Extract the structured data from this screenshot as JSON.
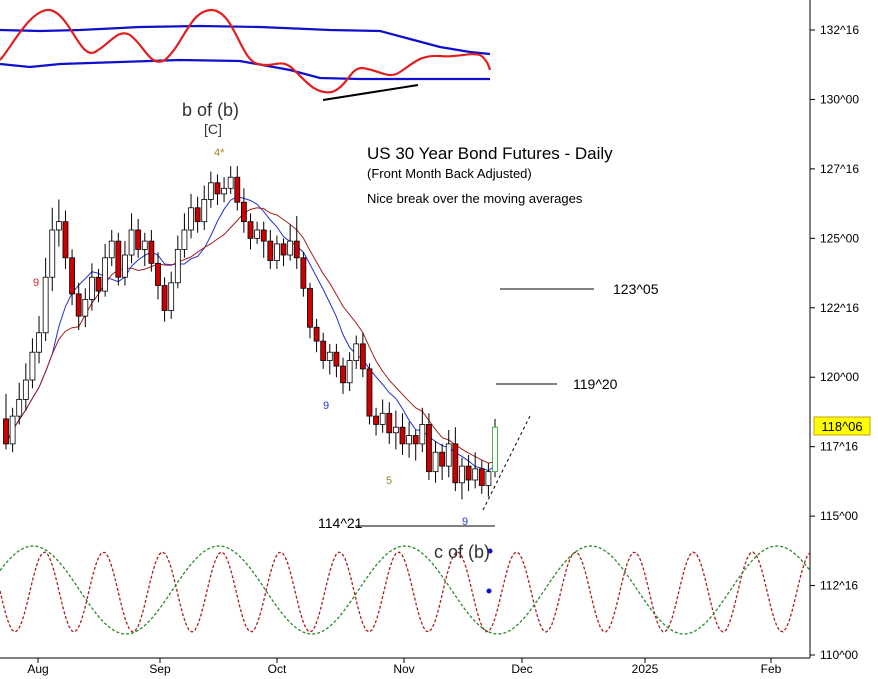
{
  "chart_data": {
    "type": "candlestick",
    "title": "US 30 Year Bond Futures - Daily",
    "subtitle": "(Front Month Back Adjusted)",
    "note": "Nice break over the moving averages",
    "y_axis": {
      "min": 110,
      "max": 132.5,
      "position": "right",
      "tick_labels": [
        "132^16",
        "130^00",
        "127^16",
        "125^00",
        "122^16",
        "120^00",
        "117^16",
        "115^00",
        "112^16",
        "110^00"
      ],
      "tick_values": [
        132.5,
        130,
        127.5,
        125,
        122.5,
        120,
        117.5,
        115,
        112.5,
        110
      ]
    },
    "x_axis": {
      "tick_labels": [
        "Aug",
        "Sep",
        "Oct",
        "Nov",
        "Dec",
        "2025",
        "Feb"
      ]
    },
    "last_price": {
      "label": "118^06",
      "value": 118.19,
      "color": "#ffff00"
    },
    "levels": [
      {
        "label": "123^05",
        "value": 123.16
      },
      {
        "label": "119^20",
        "value": 119.63
      },
      {
        "label": "114^21",
        "value": 114.66
      }
    ],
    "annotations": [
      {
        "text": "b of (b)",
        "color": "#333333"
      },
      {
        "text": "[C]",
        "color": "#333333"
      },
      {
        "text": "4*",
        "color": "#9a8a2a"
      },
      {
        "text": "9",
        "color": "#e02020"
      },
      {
        "text": "9",
        "color": "#2040d0"
      },
      {
        "text": "5",
        "color": "#9a8a2a"
      },
      {
        "text": "9",
        "color": "#2040d0"
      },
      {
        "text": "c of (b)",
        "color": "#333333"
      }
    ],
    "candles": [
      [
        118.5,
        117.6,
        119.4,
        117.4
      ],
      [
        117.6,
        118.6,
        118.9,
        117.3
      ],
      [
        118.6,
        119.2,
        119.8,
        118.3
      ],
      [
        119.2,
        119.9,
        120.5,
        118.8
      ],
      [
        119.9,
        120.9,
        121.4,
        119.6
      ],
      [
        120.9,
        121.6,
        122.2,
        120.5
      ],
      [
        121.6,
        123.6,
        124.3,
        121.3
      ],
      [
        123.6,
        125.3,
        126.1,
        123.1
      ],
      [
        125.3,
        125.6,
        126.4,
        124.7
      ],
      [
        125.6,
        124.3,
        126.0,
        123.9
      ],
      [
        124.3,
        123.0,
        124.6,
        122.6
      ],
      [
        123.0,
        122.2,
        123.4,
        121.7
      ],
      [
        122.2,
        122.8,
        123.2,
        121.8
      ],
      [
        122.8,
        123.6,
        124.1,
        122.4
      ],
      [
        123.6,
        123.1,
        123.9,
        122.7
      ],
      [
        123.1,
        124.3,
        124.8,
        122.9
      ],
      [
        124.3,
        124.9,
        125.3,
        124.0
      ],
      [
        124.9,
        123.6,
        125.2,
        123.3
      ],
      [
        123.6,
        124.4,
        124.9,
        123.3
      ],
      [
        124.4,
        125.3,
        125.9,
        124.1
      ],
      [
        125.3,
        124.6,
        125.7,
        124.3
      ],
      [
        124.6,
        124.9,
        125.2,
        124.0
      ],
      [
        124.9,
        124.1,
        125.3,
        123.8
      ],
      [
        124.1,
        123.3,
        124.5,
        122.8
      ],
      [
        123.3,
        122.4,
        123.6,
        122.0
      ],
      [
        122.4,
        123.4,
        123.8,
        122.1
      ],
      [
        123.4,
        124.6,
        125.1,
        123.2
      ],
      [
        124.6,
        125.3,
        125.9,
        124.3
      ],
      [
        125.3,
        126.1,
        126.6,
        125.0
      ],
      [
        126.1,
        125.6,
        126.5,
        125.2
      ],
      [
        125.6,
        126.4,
        126.9,
        125.3
      ],
      [
        126.4,
        127.0,
        127.4,
        126.1
      ],
      [
        127.0,
        126.6,
        127.3,
        126.2
      ],
      [
        126.6,
        126.8,
        127.2,
        126.3
      ],
      [
        126.8,
        127.2,
        127.6,
        126.6
      ],
      [
        127.2,
        126.3,
        127.6,
        126.0
      ],
      [
        126.3,
        125.6,
        126.8,
        125.2
      ],
      [
        125.6,
        125.0,
        125.9,
        124.6
      ],
      [
        125.0,
        125.3,
        125.6,
        124.8
      ],
      [
        125.3,
        124.9,
        125.6,
        124.3
      ],
      [
        124.9,
        124.2,
        125.3,
        123.9
      ],
      [
        124.2,
        124.8,
        125.1,
        123.9
      ],
      [
        124.8,
        124.4,
        125.0,
        124.0
      ],
      [
        124.4,
        124.9,
        125.5,
        124.2
      ],
      [
        124.9,
        124.3,
        125.8,
        123.9
      ],
      [
        124.3,
        123.2,
        124.5,
        122.9
      ],
      [
        123.2,
        121.8,
        123.4,
        121.4
      ],
      [
        121.8,
        121.3,
        122.1,
        120.9
      ],
      [
        121.3,
        120.6,
        121.6,
        120.3
      ],
      [
        120.6,
        120.9,
        121.2,
        120.1
      ],
      [
        120.9,
        120.4,
        121.2,
        120.0
      ],
      [
        120.4,
        119.8,
        120.7,
        119.4
      ],
      [
        119.8,
        120.6,
        120.9,
        119.5
      ],
      [
        120.6,
        121.2,
        121.5,
        120.3
      ],
      [
        121.2,
        120.3,
        121.6,
        120.0
      ],
      [
        120.3,
        118.6,
        120.5,
        118.3
      ],
      [
        118.6,
        118.3,
        118.9,
        117.9
      ],
      [
        118.3,
        118.7,
        119.2,
        118.0
      ],
      [
        118.7,
        118.0,
        119.1,
        117.6
      ],
      [
        118.0,
        118.2,
        118.8,
        117.4
      ],
      [
        118.2,
        117.6,
        118.7,
        117.2
      ],
      [
        117.6,
        117.9,
        118.4,
        117.1
      ],
      [
        117.9,
        117.6,
        118.1,
        117.0
      ],
      [
        117.6,
        118.3,
        118.9,
        117.3
      ],
      [
        118.3,
        116.6,
        118.7,
        116.3
      ],
      [
        116.6,
        117.3,
        117.7,
        116.2
      ],
      [
        117.3,
        116.8,
        117.6,
        116.3
      ],
      [
        116.8,
        117.6,
        118.1,
        116.4
      ],
      [
        117.6,
        116.2,
        118.2,
        115.9
      ],
      [
        116.2,
        116.8,
        117.1,
        115.6
      ],
      [
        116.8,
        116.3,
        117.2,
        115.9
      ],
      [
        116.3,
        116.7,
        117.3,
        116.0
      ],
      [
        116.7,
        116.1,
        117.0,
        115.8
      ],
      [
        116.1,
        116.6,
        116.9,
        115.7
      ],
      [
        116.6,
        118.2,
        118.5,
        116.4
      ]
    ]
  }
}
